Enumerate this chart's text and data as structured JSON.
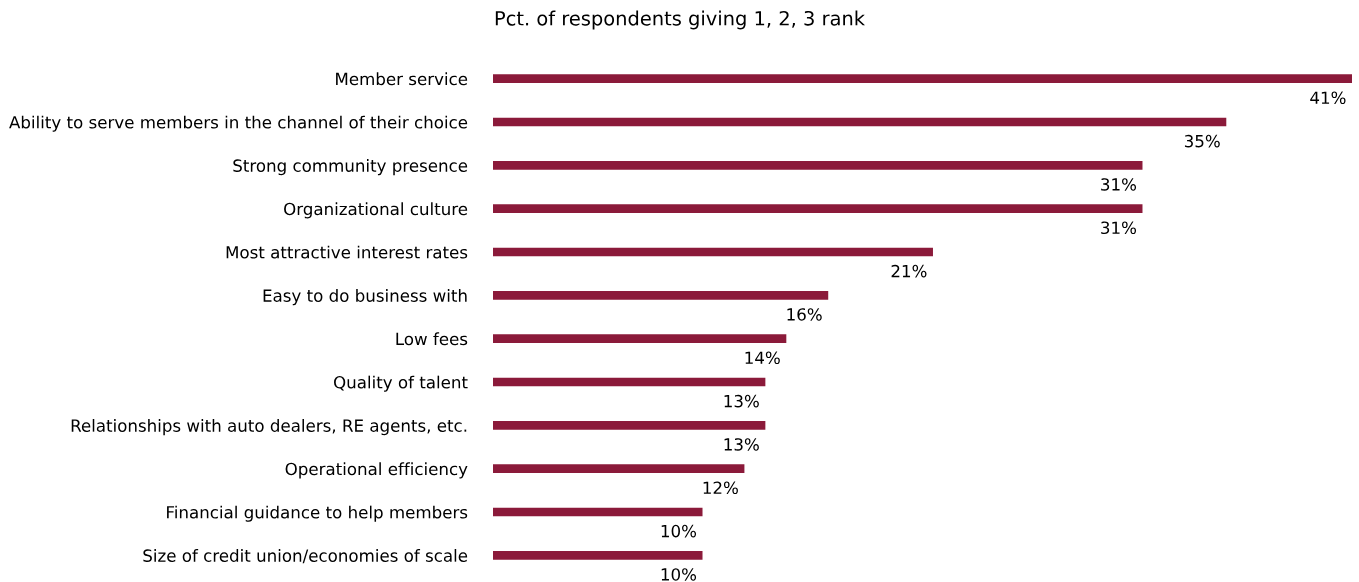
{
  "chart_data": {
    "type": "bar",
    "orientation": "horizontal",
    "title": "Pct. of respondents giving 1, 2, 3 rank",
    "categories": [
      "Member service",
      "Ability to serve members in the channel of their choice",
      "Strong community presence",
      "Organizational culture",
      "Most attractive interest rates",
      "Easy to do business with",
      "Low fees",
      "Quality of talent",
      "Relationships with auto dealers, RE agents, etc.",
      "Operational efficiency",
      "Financial guidance to help members",
      "Size of credit union/economies of scale"
    ],
    "values": [
      41,
      35,
      31,
      31,
      21,
      16,
      14,
      13,
      13,
      12,
      10,
      10
    ],
    "value_labels": [
      "41%",
      "35%",
      "31%",
      "31%",
      "21%",
      "16%",
      "14%",
      "13%",
      "13%",
      "12%",
      "10%",
      "10%"
    ],
    "color": "#8b1a3a"
  }
}
